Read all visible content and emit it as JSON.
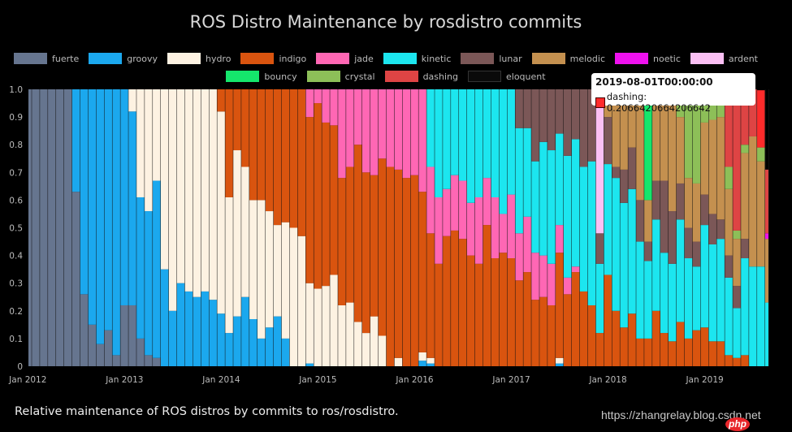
{
  "chart_data": {
    "type": "bar",
    "stacked": true,
    "title": "ROS Distro Maintenance by rosdistro commits",
    "xlabel": "",
    "ylabel": "",
    "ylim": [
      0,
      1
    ],
    "yticks": [
      "0",
      "0.1",
      "0.2",
      "0.3",
      "0.4",
      "0.5",
      "0.6",
      "0.7",
      "0.8",
      "0.9",
      "1.0"
    ],
    "xticks": [
      "Jan 2012",
      "Jan 2013",
      "Jan 2014",
      "Jan 2015",
      "Jan 2016",
      "Jan 2017",
      "Jan 2018",
      "Jan 2019"
    ],
    "legend_placement": "top",
    "series_names": [
      "fuerte",
      "groovy",
      "hydro",
      "indigo",
      "jade",
      "kinetic",
      "lunar",
      "melodic",
      "noetic",
      "ardent",
      "bouncy",
      "crystal",
      "dashing",
      "eloquent"
    ],
    "colors": {
      "fuerte": "#66758f",
      "groovy": "#1ba8ee",
      "hydro": "#fdf2e2",
      "indigo": "#d9540f",
      "jade": "#ff67b4",
      "kinetic": "#1ce6ef",
      "lunar": "#7b5757",
      "melodic": "#c4904f",
      "noetic": "#ee11ee",
      "ardent": "#fbc0f4",
      "bouncy": "#15e66c",
      "crystal": "#8dbf58",
      "dashing": "#de4444",
      "eloquent": "#0a0a0a"
    },
    "data": [
      {
        "month": "2012-01",
        "fuerte": 1
      },
      {
        "month": "2012-02",
        "fuerte": 1
      },
      {
        "month": "2012-03",
        "fuerte": 1
      },
      {
        "month": "2012-04",
        "fuerte": 1
      },
      {
        "month": "2012-05",
        "fuerte": 1
      },
      {
        "month": "2012-06",
        "fuerte": 1
      },
      {
        "month": "2012-07",
        "fuerte": 0.63,
        "groovy": 0.37
      },
      {
        "month": "2012-08",
        "fuerte": 0.26,
        "groovy": 0.74
      },
      {
        "month": "2012-09",
        "fuerte": 0.15,
        "groovy": 0.85
      },
      {
        "month": "2012-10",
        "fuerte": 0.08,
        "groovy": 0.92
      },
      {
        "month": "2012-11",
        "fuerte": 0.13,
        "groovy": 0.87
      },
      {
        "month": "2012-12",
        "fuerte": 0.04,
        "groovy": 0.96
      },
      {
        "month": "2013-01",
        "fuerte": 0.22,
        "groovy": 0.78
      },
      {
        "month": "2013-02",
        "fuerte": 0.22,
        "groovy": 0.7,
        "hydro": 0.08
      },
      {
        "month": "2013-03",
        "fuerte": 0.1,
        "groovy": 0.51,
        "hydro": 0.39
      },
      {
        "month": "2013-04",
        "fuerte": 0.04,
        "groovy": 0.52,
        "hydro": 0.44
      },
      {
        "month": "2013-05",
        "fuerte": 0.03,
        "groovy": 0.64,
        "hydro": 0.33
      },
      {
        "month": "2013-06",
        "groovy": 0.35,
        "hydro": 0.65
      },
      {
        "month": "2013-07",
        "groovy": 0.2,
        "hydro": 0.8
      },
      {
        "month": "2013-08",
        "groovy": 0.3,
        "hydro": 0.7
      },
      {
        "month": "2013-09",
        "groovy": 0.27,
        "hydro": 0.73
      },
      {
        "month": "2013-10",
        "groovy": 0.25,
        "hydro": 0.75
      },
      {
        "month": "2013-11",
        "groovy": 0.27,
        "hydro": 0.73
      },
      {
        "month": "2013-12",
        "groovy": 0.24,
        "hydro": 0.76
      },
      {
        "month": "2014-01",
        "groovy": 0.19,
        "hydro": 0.73,
        "indigo": 0.08
      },
      {
        "month": "2014-02",
        "groovy": 0.12,
        "hydro": 0.49,
        "indigo": 0.39
      },
      {
        "month": "2014-03",
        "groovy": 0.18,
        "hydro": 0.6,
        "indigo": 0.22
      },
      {
        "month": "2014-04",
        "groovy": 0.25,
        "hydro": 0.47,
        "indigo": 0.28
      },
      {
        "month": "2014-05",
        "groovy": 0.17,
        "hydro": 0.43,
        "indigo": 0.4
      },
      {
        "month": "2014-06",
        "groovy": 0.1,
        "hydro": 0.5,
        "indigo": 0.4
      },
      {
        "month": "2014-07",
        "groovy": 0.14,
        "hydro": 0.42,
        "indigo": 0.44
      },
      {
        "month": "2014-08",
        "groovy": 0.18,
        "hydro": 0.33,
        "indigo": 0.49
      },
      {
        "month": "2014-09",
        "groovy": 0.1,
        "hydro": 0.42,
        "indigo": 0.48
      },
      {
        "month": "2014-10",
        "hydro": 0.5,
        "indigo": 0.5
      },
      {
        "month": "2014-11",
        "hydro": 0.47,
        "indigo": 0.53
      },
      {
        "month": "2014-12",
        "groovy": 0.01,
        "hydro": 0.29,
        "indigo": 0.6,
        "jade": 0.1
      },
      {
        "month": "2015-01",
        "hydro": 0.28,
        "indigo": 0.67,
        "jade": 0.05
      },
      {
        "month": "2015-02",
        "hydro": 0.29,
        "indigo": 0.59,
        "jade": 0.12
      },
      {
        "month": "2015-03",
        "hydro": 0.33,
        "indigo": 0.54,
        "jade": 0.13
      },
      {
        "month": "2015-04",
        "hydro": 0.22,
        "indigo": 0.46,
        "jade": 0.32
      },
      {
        "month": "2015-05",
        "hydro": 0.23,
        "indigo": 0.49,
        "jade": 0.28
      },
      {
        "month": "2015-06",
        "hydro": 0.16,
        "indigo": 0.64,
        "jade": 0.2
      },
      {
        "month": "2015-07",
        "hydro": 0.12,
        "indigo": 0.58,
        "jade": 0.3
      },
      {
        "month": "2015-08",
        "hydro": 0.18,
        "indigo": 0.51,
        "jade": 0.31
      },
      {
        "month": "2015-09",
        "hydro": 0.11,
        "indigo": 0.64,
        "jade": 0.25
      },
      {
        "month": "2015-10",
        "indigo": 0.72,
        "jade": 0.28
      },
      {
        "month": "2015-11",
        "hydro": 0.03,
        "indigo": 0.68,
        "jade": 0.29
      },
      {
        "month": "2015-12",
        "indigo": 0.68,
        "jade": 0.32
      },
      {
        "month": "2016-01",
        "indigo": 0.69,
        "jade": 0.31
      },
      {
        "month": "2016-02",
        "groovy": 0.02,
        "hydro": 0.03,
        "indigo": 0.58,
        "jade": 0.37
      },
      {
        "month": "2016-03",
        "groovy": 0.01,
        "hydro": 0.02,
        "indigo": 0.45,
        "jade": 0.24,
        "kinetic": 0.28
      },
      {
        "month": "2016-04",
        "indigo": 0.37,
        "jade": 0.24,
        "kinetic": 0.39
      },
      {
        "month": "2016-05",
        "indigo": 0.47,
        "jade": 0.17,
        "kinetic": 0.36
      },
      {
        "month": "2016-06",
        "indigo": 0.49,
        "jade": 0.2,
        "kinetic": 0.31
      },
      {
        "month": "2016-07",
        "indigo": 0.46,
        "jade": 0.21,
        "kinetic": 0.33
      },
      {
        "month": "2016-08",
        "indigo": 0.4,
        "jade": 0.19,
        "kinetic": 0.41
      },
      {
        "month": "2016-09",
        "indigo": 0.37,
        "jade": 0.24,
        "kinetic": 0.39
      },
      {
        "month": "2016-10",
        "indigo": 0.51,
        "jade": 0.17,
        "kinetic": 0.32
      },
      {
        "month": "2016-11",
        "indigo": 0.39,
        "jade": 0.22,
        "kinetic": 0.39
      },
      {
        "month": "2016-12",
        "indigo": 0.41,
        "jade": 0.14,
        "kinetic": 0.45
      },
      {
        "month": "2017-01",
        "indigo": 0.39,
        "jade": 0.23,
        "kinetic": 0.38
      },
      {
        "month": "2017-02",
        "indigo": 0.31,
        "jade": 0.17,
        "kinetic": 0.38,
        "lunar": 0.14
      },
      {
        "month": "2017-03",
        "indigo": 0.34,
        "jade": 0.2,
        "kinetic": 0.32,
        "lunar": 0.14
      },
      {
        "month": "2017-04",
        "indigo": 0.24,
        "jade": 0.17,
        "kinetic": 0.33,
        "lunar": 0.26
      },
      {
        "month": "2017-05",
        "indigo": 0.25,
        "jade": 0.15,
        "kinetic": 0.41,
        "lunar": 0.19
      },
      {
        "month": "2017-06",
        "indigo": 0.22,
        "jade": 0.15,
        "kinetic": 0.41,
        "lunar": 0.22
      },
      {
        "month": "2017-07",
        "groovy": 0.01,
        "hydro": 0.02,
        "indigo": 0.38,
        "jade": 0.1,
        "kinetic": 0.33,
        "lunar": 0.16
      },
      {
        "month": "2017-08",
        "indigo": 0.26,
        "jade": 0.06,
        "kinetic": 0.44,
        "lunar": 0.24
      },
      {
        "month": "2017-09",
        "indigo": 0.34,
        "jade": 0.02,
        "kinetic": 0.46,
        "lunar": 0.18
      },
      {
        "month": "2017-10",
        "indigo": 0.27,
        "kinetic": 0.45,
        "lunar": 0.28
      },
      {
        "month": "2017-11",
        "indigo": 0.22,
        "kinetic": 0.52,
        "lunar": 0.26
      },
      {
        "month": "2017-12",
        "indigo": 0.12,
        "kinetic": 0.25,
        "lunar": 0.11,
        "ardent": 0.52
      },
      {
        "month": "2018-01",
        "indigo": 0.33,
        "kinetic": 0.4,
        "lunar": 0.17,
        "melodic": 0.08,
        "ardent": 0.02
      },
      {
        "month": "2018-02",
        "indigo": 0.2,
        "kinetic": 0.48,
        "lunar": 0.04,
        "melodic": 0.28
      },
      {
        "month": "2018-03",
        "indigo": 0.14,
        "kinetic": 0.45,
        "lunar": 0.12,
        "melodic": 0.29
      },
      {
        "month": "2018-04",
        "indigo": 0.19,
        "kinetic": 0.45,
        "lunar": 0.15,
        "melodic": 0.21
      },
      {
        "month": "2018-05",
        "indigo": 0.1,
        "kinetic": 0.35,
        "lunar": 0.15,
        "melodic": 0.4
      },
      {
        "month": "2018-06",
        "indigo": 0.1,
        "kinetic": 0.28,
        "lunar": 0.07,
        "melodic": 0.15,
        "bouncy": 0.4
      },
      {
        "month": "2018-07",
        "indigo": 0.2,
        "kinetic": 0.33,
        "lunar": 0.14,
        "melodic": 0.31,
        "ardent": 0.02
      },
      {
        "month": "2018-08",
        "indigo": 0.12,
        "kinetic": 0.29,
        "lunar": 0.26,
        "melodic": 0.33
      },
      {
        "month": "2018-09",
        "indigo": 0.09,
        "kinetic": 0.28,
        "lunar": 0.19,
        "melodic": 0.39,
        "crystal": 0.05
      },
      {
        "month": "2018-10",
        "indigo": 0.16,
        "kinetic": 0.37,
        "lunar": 0.13,
        "melodic": 0.24,
        "crystal": 0.1
      },
      {
        "month": "2018-11",
        "indigo": 0.1,
        "kinetic": 0.29,
        "lunar": 0.11,
        "melodic": 0.18,
        "crystal": 0.32
      },
      {
        "month": "2018-12",
        "indigo": 0.13,
        "kinetic": 0.23,
        "lunar": 0.09,
        "melodic": 0.21,
        "crystal": 0.34
      },
      {
        "month": "2019-01",
        "indigo": 0.14,
        "kinetic": 0.37,
        "lunar": 0.11,
        "melodic": 0.26,
        "crystal": 0.12
      },
      {
        "month": "2019-02",
        "indigo": 0.09,
        "kinetic": 0.35,
        "lunar": 0.11,
        "melodic": 0.34,
        "crystal": 0.11
      },
      {
        "month": "2019-03",
        "indigo": 0.09,
        "kinetic": 0.37,
        "lunar": 0.07,
        "melodic": 0.37,
        "crystal": 0.1
      },
      {
        "month": "2019-04",
        "indigo": 0.04,
        "kinetic": 0.28,
        "lunar": 0.08,
        "melodic": 0.24,
        "crystal": 0.08,
        "dashing": 0.28
      },
      {
        "month": "2019-05",
        "indigo": 0.03,
        "kinetic": 0.18,
        "lunar": 0.08,
        "melodic": 0.17,
        "crystal": 0.03,
        "dashing": 0.51
      },
      {
        "month": "2019-06",
        "indigo": 0.04,
        "kinetic": 0.35,
        "lunar": 0.07,
        "melodic": 0.31,
        "crystal": 0.03,
        "dashing": 0.2
      },
      {
        "month": "2019-07",
        "kinetic": 0.36,
        "melodic": 0.47,
        "dashing": 0.17
      },
      {
        "month": "2019-08",
        "kinetic": 0.36,
        "melodic": 0.38,
        "crystal": 0.05,
        "dashing": 0.2066420664206642
      },
      {
        "month": "2019-09",
        "kinetic": 0.23,
        "melodic": 0.23,
        "noetic": 0.02,
        "dashing": 0.23
      }
    ],
    "hovered": {
      "month": "2019-08",
      "series": "dashing"
    }
  },
  "legend": {
    "row1": [
      "fuerte",
      "groovy",
      "hydro",
      "indigo",
      "jade",
      "kinetic",
      "lunar",
      "melodic",
      "noetic",
      "ardent"
    ],
    "row2": [
      "bouncy",
      "crystal",
      "dashing",
      "eloquent"
    ]
  },
  "tooltip": {
    "date": "2019-08-01T00:00:00",
    "text": "dashing: 0.2066420664206642",
    "color": "#ff2b2b"
  },
  "caption": "Relative maintenance of ROS distros by commits to ros/rosdistro.",
  "watermark": "https://zhangrelay.blog.csdn.net",
  "logo_text": "php"
}
